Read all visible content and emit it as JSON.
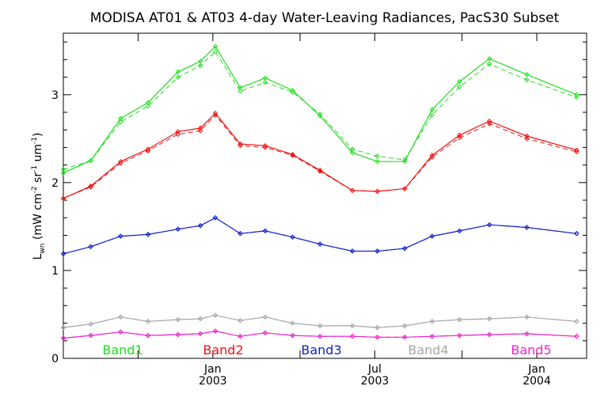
{
  "chart_data": {
    "type": "line",
    "title": "MODISA AT01 & AT03 4-day Water-Leaving Radiances, PacS30 Subset",
    "ylabel_main": "L",
    "ylabel_sub": "wn",
    "ylabel_units": " (mW cm",
    "ylabel_units2": " sr",
    "ylabel_units3": " um",
    "ylabel_sup1": "-2",
    "ylabel_sup2": "-1",
    "ylabel_sup3": "-1",
    "xlabel": "",
    "ylim": [
      0,
      3.7
    ],
    "xlim": [
      0,
      21
    ],
    "yticks": [
      0,
      1,
      2,
      3
    ],
    "ytick_labels": [
      "0",
      "1",
      "2",
      "3"
    ],
    "xtick_labels": [
      {
        "x": 6,
        "line1": "Jan",
        "line2": "2003"
      },
      {
        "x": 12.5,
        "line1": "Jul",
        "line2": "2003"
      },
      {
        "x": 19,
        "line1": "Jan",
        "line2": "2004"
      }
    ],
    "x_minor_ticks": [
      3,
      6,
      9.5,
      12.5,
      16,
      19
    ],
    "grid": false,
    "legend_placement": "bottom",
    "series": [
      {
        "name": "Band1",
        "color": "#22dd22",
        "x": [
          0,
          1.1,
          2.3,
          3.4,
          4.6,
          5.5,
          6.1,
          7.1,
          8.1,
          9.2,
          10.3,
          11.6,
          12.6,
          13.7,
          14.8,
          15.9,
          17.1,
          18.6,
          20.6
        ],
        "solid": [
          2.11,
          2.25,
          2.73,
          2.91,
          3.26,
          3.38,
          3.55,
          3.08,
          3.19,
          3.05,
          2.76,
          2.34,
          2.24,
          2.24,
          2.83,
          3.15,
          3.41,
          3.23,
          3.0
        ],
        "dashed": [
          2.15,
          2.25,
          2.69,
          2.87,
          3.2,
          3.33,
          3.49,
          3.04,
          3.14,
          3.03,
          2.78,
          2.38,
          2.3,
          2.26,
          2.77,
          3.09,
          3.35,
          3.17,
          2.97
        ]
      },
      {
        "name": "Band2",
        "color": "#ee1111",
        "x": [
          0,
          1.1,
          2.3,
          3.4,
          4.6,
          5.5,
          6.1,
          7.1,
          8.1,
          9.2,
          10.3,
          11.6,
          12.6,
          13.7,
          14.8,
          15.9,
          17.1,
          18.6,
          20.6
        ],
        "solid": [
          1.82,
          1.96,
          2.24,
          2.38,
          2.58,
          2.62,
          2.79,
          2.44,
          2.42,
          2.32,
          2.14,
          1.91,
          1.9,
          1.93,
          2.31,
          2.54,
          2.7,
          2.53,
          2.37
        ],
        "dashed": [
          1.82,
          1.95,
          2.22,
          2.36,
          2.55,
          2.59,
          2.77,
          2.42,
          2.4,
          2.31,
          2.13,
          1.91,
          1.9,
          1.93,
          2.29,
          2.51,
          2.67,
          2.5,
          2.35
        ]
      },
      {
        "name": "Band3",
        "color": "#1122cc",
        "x": [
          0,
          1.1,
          2.3,
          3.4,
          4.6,
          5.5,
          6.1,
          7.1,
          8.1,
          9.2,
          10.3,
          11.6,
          12.6,
          13.7,
          14.8,
          15.9,
          17.1,
          18.6,
          20.6
        ],
        "solid": [
          1.19,
          1.27,
          1.39,
          1.41,
          1.47,
          1.51,
          1.6,
          1.42,
          1.45,
          1.38,
          1.3,
          1.22,
          1.22,
          1.25,
          1.39,
          1.45,
          1.52,
          1.49,
          1.42
        ],
        "dashed": [
          1.19,
          1.27,
          1.39,
          1.41,
          1.47,
          1.51,
          1.6,
          1.42,
          1.45,
          1.38,
          1.3,
          1.22,
          1.22,
          1.25,
          1.39,
          1.45,
          1.52,
          1.49,
          1.42
        ]
      },
      {
        "name": "Band4",
        "color": "#a8a8a8",
        "x": [
          0,
          1.1,
          2.3,
          3.4,
          4.6,
          5.5,
          6.1,
          7.1,
          8.1,
          9.2,
          10.3,
          11.6,
          12.6,
          13.7,
          14.8,
          15.9,
          17.1,
          18.6,
          20.6
        ],
        "solid": [
          0.35,
          0.39,
          0.47,
          0.42,
          0.44,
          0.45,
          0.49,
          0.43,
          0.47,
          0.4,
          0.37,
          0.37,
          0.35,
          0.37,
          0.42,
          0.44,
          0.45,
          0.47,
          0.42
        ],
        "dashed": [
          0.35,
          0.39,
          0.47,
          0.42,
          0.44,
          0.45,
          0.49,
          0.43,
          0.47,
          0.4,
          0.37,
          0.37,
          0.35,
          0.37,
          0.42,
          0.44,
          0.45,
          0.47,
          0.42
        ]
      },
      {
        "name": "Band5",
        "color": "#ee22cc",
        "x": [
          0,
          1.1,
          2.3,
          3.4,
          4.6,
          5.5,
          6.1,
          7.1,
          8.1,
          9.2,
          10.3,
          11.6,
          12.6,
          13.7,
          14.8,
          15.9,
          17.1,
          18.6,
          20.6
        ],
        "solid": [
          0.23,
          0.26,
          0.3,
          0.26,
          0.27,
          0.28,
          0.31,
          0.25,
          0.29,
          0.26,
          0.25,
          0.25,
          0.24,
          0.24,
          0.25,
          0.26,
          0.27,
          0.28,
          0.25
        ],
        "dashed": [
          0.23,
          0.26,
          0.3,
          0.26,
          0.27,
          0.28,
          0.31,
          0.25,
          0.29,
          0.26,
          0.25,
          0.25,
          0.24,
          0.24,
          0.25,
          0.26,
          0.27,
          0.28,
          0.25
        ]
      }
    ]
  }
}
